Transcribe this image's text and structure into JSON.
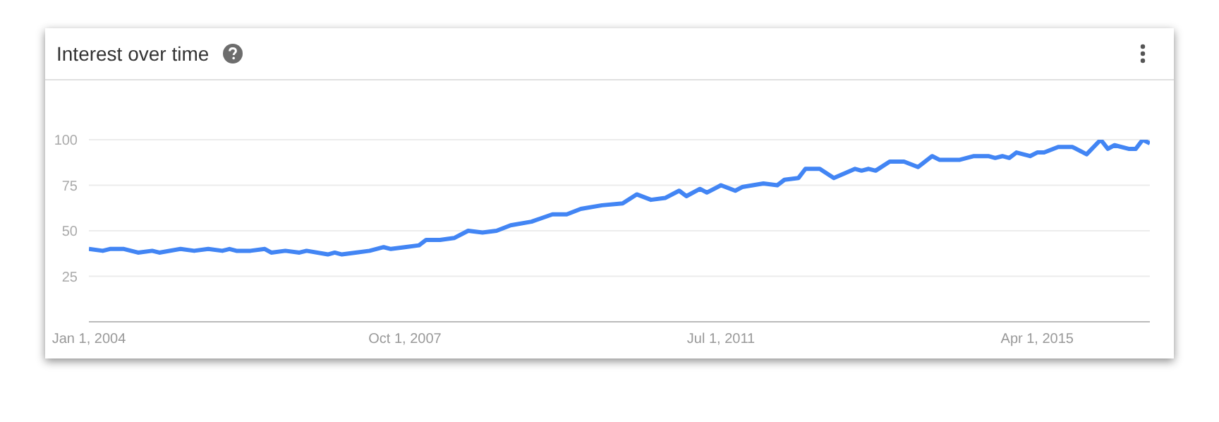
{
  "chart_data": {
    "type": "line",
    "title": "Interest over time",
    "x": [
      "2004-01",
      "2004-03",
      "2004-04",
      "2004-06",
      "2004-08",
      "2004-10",
      "2004-11",
      "2005-02",
      "2005-04",
      "2005-06",
      "2005-08",
      "2005-09",
      "2005-10",
      "2005-12",
      "2006-02",
      "2006-03",
      "2006-05",
      "2006-07",
      "2006-08",
      "2006-11",
      "2006-12",
      "2007-01",
      "2007-03",
      "2007-05",
      "2007-07",
      "2007-08",
      "2007-10",
      "2007-12",
      "2008-01",
      "2008-03",
      "2008-05",
      "2008-07",
      "2008-09",
      "2008-11",
      "2009-01",
      "2009-04",
      "2009-07",
      "2009-09",
      "2009-11",
      "2010-02",
      "2010-05",
      "2010-07",
      "2010-09",
      "2010-11",
      "2011-01",
      "2011-02",
      "2011-04",
      "2011-05",
      "2011-07",
      "2011-09",
      "2011-10",
      "2012-01",
      "2012-03",
      "2012-04",
      "2012-06",
      "2012-07",
      "2012-09",
      "2012-11",
      "2013-02",
      "2013-03",
      "2013-04",
      "2013-05",
      "2013-07",
      "2013-09",
      "2013-11",
      "2014-01",
      "2014-02",
      "2014-05",
      "2014-07",
      "2014-09",
      "2014-10",
      "2014-11",
      "2014-12",
      "2015-01",
      "2015-03",
      "2015-04",
      "2015-05",
      "2015-07",
      "2015-09",
      "2015-11",
      "2016-01",
      "2016-02",
      "2016-03",
      "2016-05",
      "2016-06",
      "2016-07",
      "2016-08"
    ],
    "series": [
      {
        "color": "#4285f4",
        "values": [
          40,
          39,
          40,
          40,
          38,
          39,
          38,
          40,
          39,
          40,
          39,
          40,
          39,
          39,
          40,
          38,
          39,
          38,
          39,
          37,
          38,
          37,
          38,
          39,
          41,
          40,
          41,
          42,
          45,
          45,
          46,
          50,
          49,
          50,
          53,
          55,
          59,
          59,
          62,
          64,
          65,
          70,
          67,
          68,
          72,
          69,
          73,
          71,
          75,
          72,
          74,
          76,
          75,
          78,
          79,
          84,
          84,
          79,
          84,
          83,
          84,
          83,
          88,
          88,
          85,
          91,
          89,
          89,
          91,
          91,
          90,
          91,
          90,
          93,
          91,
          93,
          93,
          96,
          96,
          92,
          100,
          95,
          97,
          95,
          95,
          100,
          98
        ]
      }
    ],
    "xlim": [
      "2004-01",
      "2016-08"
    ],
    "xticks": [
      {
        "value": "2004-01-01",
        "label": "Jan 1, 2004"
      },
      {
        "value": "2007-10-01",
        "label": "Oct 1, 2007"
      },
      {
        "value": "2011-07-01",
        "label": "Jul 1, 2011"
      },
      {
        "value": "2015-04-01",
        "label": "Apr 1, 2015"
      }
    ],
    "ylim": [
      0,
      100
    ],
    "yticks": [
      25,
      50,
      75,
      100
    ],
    "grid": "y",
    "marker": "none",
    "line_style": "solid"
  }
}
